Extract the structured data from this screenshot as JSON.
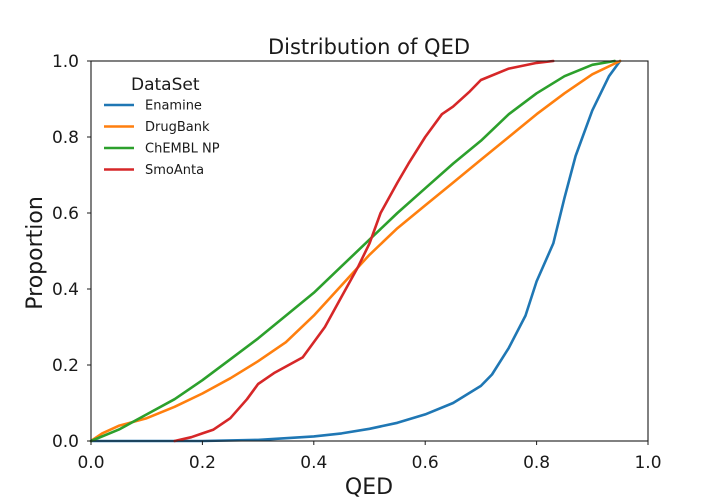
{
  "chart_data": {
    "type": "line",
    "title": "Distribution of QED",
    "xlabel": "QED",
    "ylabel": "Proportion",
    "xlim": [
      0.0,
      1.0
    ],
    "ylim": [
      0.0,
      1.0
    ],
    "xticks": [
      "0.0",
      "0.2",
      "0.4",
      "0.6",
      "0.8",
      "1.0"
    ],
    "yticks": [
      "0.0",
      "0.2",
      "0.4",
      "0.6",
      "0.8",
      "1.0"
    ],
    "grid": false,
    "legend": {
      "title": "DataSet",
      "placement": "top-left"
    },
    "series": [
      {
        "name": "Enamine",
        "color": "#1f77b4",
        "points": [
          [
            0.0,
            0.0
          ],
          [
            0.1,
            0.0
          ],
          [
            0.2,
            0.0
          ],
          [
            0.3,
            0.003
          ],
          [
            0.4,
            0.012
          ],
          [
            0.45,
            0.02
          ],
          [
            0.5,
            0.032
          ],
          [
            0.55,
            0.048
          ],
          [
            0.6,
            0.07
          ],
          [
            0.65,
            0.1
          ],
          [
            0.7,
            0.145
          ],
          [
            0.72,
            0.175
          ],
          [
            0.75,
            0.245
          ],
          [
            0.78,
            0.33
          ],
          [
            0.8,
            0.42
          ],
          [
            0.83,
            0.52
          ],
          [
            0.85,
            0.64
          ],
          [
            0.87,
            0.75
          ],
          [
            0.9,
            0.87
          ],
          [
            0.93,
            0.96
          ],
          [
            0.95,
            1.0
          ]
        ]
      },
      {
        "name": "DrugBank",
        "color": "#ff7f0e",
        "points": [
          [
            0.0,
            0.0
          ],
          [
            0.02,
            0.02
          ],
          [
            0.05,
            0.04
          ],
          [
            0.1,
            0.06
          ],
          [
            0.15,
            0.09
          ],
          [
            0.2,
            0.125
          ],
          [
            0.25,
            0.165
          ],
          [
            0.3,
            0.21
          ],
          [
            0.35,
            0.26
          ],
          [
            0.4,
            0.33
          ],
          [
            0.45,
            0.41
          ],
          [
            0.5,
            0.49
          ],
          [
            0.55,
            0.56
          ],
          [
            0.6,
            0.62
          ],
          [
            0.65,
            0.68
          ],
          [
            0.7,
            0.74
          ],
          [
            0.75,
            0.8
          ],
          [
            0.8,
            0.86
          ],
          [
            0.85,
            0.915
          ],
          [
            0.9,
            0.965
          ],
          [
            0.95,
            1.0
          ]
        ]
      },
      {
        "name": "ChEMBL NP",
        "color": "#2ca02c",
        "points": [
          [
            0.0,
            0.0
          ],
          [
            0.05,
            0.03
          ],
          [
            0.1,
            0.07
          ],
          [
            0.15,
            0.11
          ],
          [
            0.2,
            0.16
          ],
          [
            0.25,
            0.215
          ],
          [
            0.3,
            0.27
          ],
          [
            0.35,
            0.33
          ],
          [
            0.4,
            0.39
          ],
          [
            0.45,
            0.46
          ],
          [
            0.5,
            0.53
          ],
          [
            0.55,
            0.6
          ],
          [
            0.6,
            0.665
          ],
          [
            0.65,
            0.73
          ],
          [
            0.7,
            0.79
          ],
          [
            0.75,
            0.86
          ],
          [
            0.8,
            0.915
          ],
          [
            0.85,
            0.96
          ],
          [
            0.9,
            0.99
          ],
          [
            0.94,
            1.0
          ]
        ]
      },
      {
        "name": "SmoAnta",
        "color": "#d62728",
        "points": [
          [
            0.15,
            0.0
          ],
          [
            0.18,
            0.01
          ],
          [
            0.2,
            0.02
          ],
          [
            0.22,
            0.03
          ],
          [
            0.25,
            0.06
          ],
          [
            0.28,
            0.11
          ],
          [
            0.3,
            0.15
          ],
          [
            0.33,
            0.18
          ],
          [
            0.38,
            0.22
          ],
          [
            0.42,
            0.3
          ],
          [
            0.45,
            0.38
          ],
          [
            0.48,
            0.46
          ],
          [
            0.5,
            0.52
          ],
          [
            0.52,
            0.6
          ],
          [
            0.55,
            0.68
          ],
          [
            0.57,
            0.73
          ],
          [
            0.6,
            0.8
          ],
          [
            0.63,
            0.86
          ],
          [
            0.65,
            0.88
          ],
          [
            0.68,
            0.92
          ],
          [
            0.7,
            0.95
          ],
          [
            0.75,
            0.98
          ],
          [
            0.8,
            0.995
          ],
          [
            0.83,
            1.0
          ]
        ]
      }
    ]
  }
}
